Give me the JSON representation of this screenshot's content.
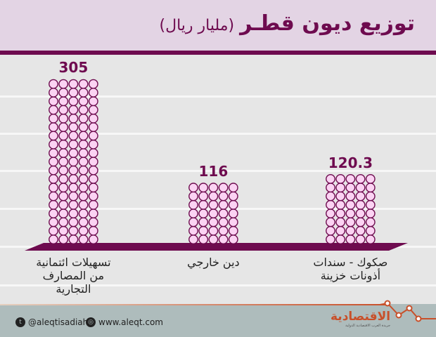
{
  "header": {
    "title": "توزيع ديون قطـر",
    "unit": "(مليار ريال)"
  },
  "chart_data": {
    "type": "bar",
    "title": "توزيع ديون قطـر (مليار ريال)",
    "categories": [
      "تسهيلات ائتمانية من المصارف التجارية",
      "دين خارجي",
      "صكوك - سندات أذونات خزينة"
    ],
    "category_lines": [
      [
        "تسهيلات ائتمانية",
        "من المصارف",
        "التجارية"
      ],
      [
        "دين خارجي"
      ],
      [
        "صكوك - سندات",
        "أذونات خزينة"
      ]
    ],
    "values": [
      305,
      116,
      120.3
    ],
    "value_labels": [
      "305",
      "116",
      "120.3"
    ],
    "units_per_row": 16,
    "colors": {
      "accent": "#6e0b4f",
      "circle_fill": "#fbd3f3"
    }
  },
  "footer": {
    "twitter": "@aleqtisadiah",
    "website": "www.aleqt.com",
    "logo": "الاقتصادية",
    "logo_sub": "جريدة العرب الاقتصادية الدولية"
  }
}
